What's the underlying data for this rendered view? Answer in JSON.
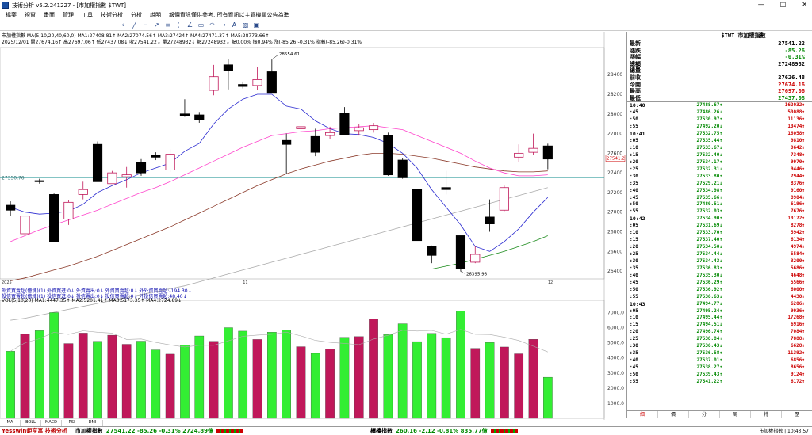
{
  "window": {
    "title": "技術分析 v5.2.241227 - [市加權指數 $TWT]",
    "minimize": "—",
    "maximize": "□",
    "close": "✕"
  },
  "menu": [
    "檔案",
    "視窗",
    "畫面",
    "管理",
    "工具",
    "技術分析",
    "分析",
    "說明",
    "報價資訊僅供參考, 所有資訊以主管機關公告為準"
  ],
  "chart_header": {
    "line1": "市加權指數  MA(5,10,20,40,60,0)  MA1:27408.81↑  MA2:27074.56↑  MA3:27424↑  MA4:27471.37↑  MA5:28773.66↑",
    "line2": "2025/12/01  開27674.16↑ 高27697.06↑ 低27437.08↓ 收27541.22↓ 量27248932↓ 額27248932↓ 幅0.00% 振0.94% 漲(-85.26)-0.31% 指數(-85.26)-0.31%"
  },
  "price_axis": [
    "28400",
    "28200",
    "28000",
    "27800",
    "27600",
    "27400",
    "27200",
    "27000",
    "26800",
    "26600",
    "26400"
  ],
  "price_annotations": {
    "high": "28554.61",
    "low": "26395.98",
    "ref": "27350.76",
    "cur": "27541.2"
  },
  "date_labels": {
    "d1": "2025",
    "d2": "11",
    "d3": "12"
  },
  "foreign_lines": [
    "外資買賣超(億塊)(1) 外資買進:0↓ 外資賣出:0↓ 外資買賣超:0↓ 外外資買賣超:-194.30↓",
    "投信買賣超(億塊)(1) 投信買進:0↓ 投信賣出:0↓ 投信買賣超:0↓ 外投信買賣超:48.40↓"
  ],
  "vol_header": "VOL(5,10,20)  MA1:4447.35↑  MA2:5201.41↑  MA3:5173.35↑  MA4:2724.89↓",
  "vol_axis": [
    "7000.0",
    "6000.0",
    "5000.0",
    "4000.0",
    "3000.0",
    "2000.0",
    "1000.0"
  ],
  "chart_data": {
    "type": "candlestick",
    "candles": [
      {
        "o": 27070,
        "h": 27110,
        "l": 26960,
        "c": 27020
      },
      {
        "o": 26780,
        "h": 27000,
        "l": 26530,
        "c": 26960
      },
      {
        "o": 27320,
        "h": 27340,
        "l": 27290,
        "c": 27310
      },
      {
        "o": 27180,
        "h": 27190,
        "l": 26700,
        "c": 26700
      },
      {
        "o": 26930,
        "h": 27120,
        "l": 26870,
        "c": 27100
      },
      {
        "o": 27180,
        "h": 27310,
        "l": 27130,
        "c": 27230
      },
      {
        "o": 27690,
        "h": 27720,
        "l": 27310,
        "c": 27310
      },
      {
        "o": 27290,
        "h": 27420,
        "l": 27300,
        "c": 27400
      },
      {
        "o": 27360,
        "h": 27460,
        "l": 27250,
        "c": 27380
      },
      {
        "o": 27510,
        "h": 27540,
        "l": 27370,
        "c": 27400
      },
      {
        "o": 27580,
        "h": 27610,
        "l": 27530,
        "c": 27560
      },
      {
        "o": 27430,
        "h": 27640,
        "l": 27410,
        "c": 27590
      },
      {
        "o": 28000,
        "h": 28150,
        "l": 27970,
        "c": 27980
      },
      {
        "o": 27990,
        "h": 28020,
        "l": 27910,
        "c": 27940
      },
      {
        "o": 28240,
        "h": 28500,
        "l": 28190,
        "c": 28380
      },
      {
        "o": 28500,
        "h": 28560,
        "l": 28250,
        "c": 28440
      },
      {
        "o": 28300,
        "h": 28330,
        "l": 28260,
        "c": 28280
      },
      {
        "o": 28290,
        "h": 28480,
        "l": 28240,
        "c": 28350
      },
      {
        "o": 28430,
        "h": 28554,
        "l": 28210,
        "c": 28210
      },
      {
        "o": 27730,
        "h": 27800,
        "l": 27390,
        "c": 27690
      },
      {
        "o": 27850,
        "h": 28000,
        "l": 27810,
        "c": 27870
      },
      {
        "o": 27770,
        "h": 27850,
        "l": 27570,
        "c": 27610
      },
      {
        "o": 27780,
        "h": 27870,
        "l": 27740,
        "c": 27810
      },
      {
        "o": 28010,
        "h": 28070,
        "l": 27780,
        "c": 27790
      },
      {
        "o": 27830,
        "h": 27900,
        "l": 27780,
        "c": 27860
      },
      {
        "o": 27840,
        "h": 27910,
        "l": 27810,
        "c": 27880
      },
      {
        "o": 27780,
        "h": 27810,
        "l": 27370,
        "c": 27380
      },
      {
        "o": 27530,
        "h": 27550,
        "l": 27340,
        "c": 27350
      },
      {
        "o": 27230,
        "h": 27240,
        "l": 26710,
        "c": 26710
      },
      {
        "o": 26650,
        "h": 26660,
        "l": 26480,
        "c": 26560
      },
      {
        "o": 27250,
        "h": 27420,
        "l": 27180,
        "c": 27230
      },
      {
        "o": 26760,
        "h": 26760,
        "l": 26396,
        "c": 26420
      },
      {
        "o": 26490,
        "h": 26650,
        "l": 26480,
        "c": 26570
      },
      {
        "o": 26950,
        "h": 27130,
        "l": 26800,
        "c": 26880
      },
      {
        "o": 27020,
        "h": 27270,
        "l": 27010,
        "c": 27250
      },
      {
        "o": 27560,
        "h": 27690,
        "l": 27510,
        "c": 27600
      },
      {
        "o": 27610,
        "h": 27800,
        "l": 27580,
        "c": 27650
      },
      {
        "o": 27674,
        "h": 27697,
        "l": 27437,
        "c": 27541
      }
    ],
    "ma5": [
      27050,
      27000,
      26980,
      26990,
      27010,
      27080,
      27200,
      27270,
      27330,
      27400,
      27450,
      27500,
      27620,
      27700,
      27900,
      28050,
      28150,
      28200,
      28200,
      28080,
      28050,
      27930,
      27850,
      27800,
      27790,
      27760,
      27700,
      27600,
      27450,
      27230,
      27050,
      26870,
      26650,
      26600,
      26700,
      26830,
      27000,
      27150
    ],
    "ma20": [
      26700,
      26760,
      26820,
      26870,
      26920,
      26970,
      27020,
      27080,
      27140,
      27200,
      27250,
      27310,
      27380,
      27450,
      27520,
      27590,
      27660,
      27720,
      27780,
      27800,
      27820,
      27830,
      27850,
      27860,
      27870,
      27880,
      27860,
      27840,
      27780,
      27720,
      27660,
      27600,
      27520,
      27450,
      27400,
      27370,
      27370,
      27380
    ],
    "ma60": [
      26300,
      26330,
      26370,
      26410,
      26450,
      26500,
      26550,
      26610,
      26670,
      26730,
      26790,
      26850,
      26920,
      26990,
      27060,
      27130,
      27200,
      27270,
      27330,
      27390,
      27440,
      27480,
      27520,
      27550,
      27580,
      27600,
      27600,
      27590,
      27570,
      27550,
      27520,
      27490,
      27460,
      27440,
      27420,
      27410,
      27410,
      27420
    ],
    "ma200": [
      25900,
      25920,
      25950,
      25980,
      26010,
      26040,
      26070,
      26100,
      26130,
      26160,
      26190,
      26220,
      26250,
      26290,
      26330,
      26370,
      26410,
      26450,
      26490,
      26530,
      26570,
      26610,
      26650,
      26690,
      26730,
      26770,
      26810,
      26850,
      26890,
      26930,
      26970,
      27010,
      27050,
      27090,
      27130,
      27170,
      27210,
      27250
    ],
    "ma_green": [
      null,
      null,
      null,
      null,
      null,
      null,
      null,
      null,
      null,
      null,
      null,
      null,
      null,
      null,
      null,
      null,
      null,
      null,
      null,
      null,
      null,
      null,
      null,
      null,
      null,
      null,
      null,
      null,
      null,
      26420,
      26450,
      26480,
      26520,
      26560,
      26600,
      26650,
      26700,
      26760
    ],
    "volume": [
      4440,
      5560,
      5800,
      7000,
      4950,
      5640,
      5100,
      5500,
      4900,
      5110,
      4530,
      4250,
      4830,
      5450,
      5100,
      6000,
      5770,
      5220,
      5700,
      5830,
      4740,
      4300,
      4570,
      5360,
      5410,
      6580,
      5540,
      6260,
      5080,
      5620,
      5340,
      7120,
      4630,
      5020,
      4720,
      4270,
      5230,
      2720
    ]
  },
  "quote_panel": {
    "title": "$TWT 市加權指數",
    "rows": [
      {
        "label": "最新",
        "value": "27541.22"
      },
      {
        "label": "漲跌",
        "value": "-85.26"
      },
      {
        "label": "漲幅",
        "value": "-0.31%"
      },
      {
        "label": "總額",
        "value": "27248932"
      },
      {
        "label": "總量",
        "value": ""
      },
      {
        "label": "前收",
        "value": "27626.48"
      },
      {
        "label": "今開",
        "value": "27674.16"
      },
      {
        "label": "最高",
        "value": "27697.06"
      },
      {
        "label": "最低",
        "value": "27437.08"
      }
    ],
    "ticks": [
      {
        "t": "10:40",
        "p": "27488.67↑",
        "v": "162032↑",
        "m": true
      },
      {
        "t": ":45",
        "p": "27486.26↓",
        "v": "50088↑"
      },
      {
        "t": ":50",
        "p": "27530.97↑",
        "v": "11136↑"
      },
      {
        "t": ":55",
        "p": "27492.20↓",
        "v": "10474↑"
      },
      {
        "t": "10:41",
        "p": "27532.75↑",
        "v": "16058↑",
        "m": true
      },
      {
        "t": ":05",
        "p": "27535.44↑",
        "v": "9810↑"
      },
      {
        "t": ":10",
        "p": "27533.67↓",
        "v": "9642↑"
      },
      {
        "t": ":15",
        "p": "27532.40↓",
        "v": "7348↑"
      },
      {
        "t": ":20",
        "p": "27534.17↑",
        "v": "9970↑"
      },
      {
        "t": ":25",
        "p": "27532.31↓",
        "v": "9446↑"
      },
      {
        "t": ":30",
        "p": "27533.80↑",
        "v": "7944↑"
      },
      {
        "t": ":35",
        "p": "27529.21↓",
        "v": "8376↑"
      },
      {
        "t": ":40",
        "p": "27534.98↑",
        "v": "9160↑"
      },
      {
        "t": ":45",
        "p": "27535.66↑",
        "v": "8904↑"
      },
      {
        "t": ":50",
        "p": "27480.51↓",
        "v": "6196↑"
      },
      {
        "t": ":55",
        "p": "27532.03↑",
        "v": "7676↑"
      },
      {
        "t": "10:42",
        "p": "27534.90↑",
        "v": "10172↑",
        "m": true
      },
      {
        "t": ":05",
        "p": "27531.69↓",
        "v": "8278↑"
      },
      {
        "t": ":10",
        "p": "27533.70↑",
        "v": "5942↑"
      },
      {
        "t": ":15",
        "p": "27537.40↑",
        "v": "6134↑"
      },
      {
        "t": ":20",
        "p": "27534.50↓",
        "v": "4974↑"
      },
      {
        "t": ":25",
        "p": "27534.44↓",
        "v": "5584↑"
      },
      {
        "t": ":30",
        "p": "27534.43↓",
        "v": "3200↑"
      },
      {
        "t": ":35",
        "p": "27536.83↑",
        "v": "5686↑"
      },
      {
        "t": ":40",
        "p": "27535.30↓",
        "v": "4648↑"
      },
      {
        "t": ":45",
        "p": "27536.29↑",
        "v": "5566↑"
      },
      {
        "t": ":50",
        "p": "27536.92↑",
        "v": "6000↑"
      },
      {
        "t": ":55",
        "p": "27536.63↓",
        "v": "4430↑"
      },
      {
        "t": "10:43",
        "p": "27494.77↓",
        "v": "6206↑",
        "m": true
      },
      {
        "t": ":05",
        "p": "27495.24↑",
        "v": "9936↑"
      },
      {
        "t": ":10",
        "p": "27495.44↑",
        "v": "17268↑"
      },
      {
        "t": ":15",
        "p": "27494.51↓",
        "v": "6916↑"
      },
      {
        "t": ":20",
        "p": "27496.74↑",
        "v": "7084↑"
      },
      {
        "t": ":25",
        "p": "27538.84↑",
        "v": "7888↑"
      },
      {
        "t": ":30",
        "p": "27536.43↓",
        "v": "6628↑"
      },
      {
        "t": ":35",
        "p": "27536.58↑",
        "v": "11392↑"
      },
      {
        "t": ":40",
        "p": "27537.01↑",
        "v": "6856↑"
      },
      {
        "t": ":45",
        "p": "27538.27↑",
        "v": "8656↑"
      },
      {
        "t": ":50",
        "p": "27539.43↑",
        "v": "9124↑"
      },
      {
        "t": ":55",
        "p": "27541.22↑",
        "v": "6172↑"
      }
    ],
    "tabs": [
      "細",
      "價",
      "分",
      "周",
      "特",
      "歷"
    ]
  },
  "indicator_tabs": [
    "MA",
    "BOLL",
    "MACD",
    "RSI",
    "DMI"
  ],
  "bottom": {
    "brand": "Yesswin鉅亨富 技術分析",
    "idx1_name": "市加權指數",
    "idx1_vals": "27541.22 -85.26 -0.31% 2724.89億",
    "idx2_name": "櫃檯指數",
    "idx2_vals": "260.16 -2.12 -0.81% 835.77億",
    "status": "市加權指數 | 10:43:57"
  },
  "colors": {
    "up": "#c0185a",
    "down": "#000000",
    "vol_up": "#c0185a",
    "vol_down": "#33ee33",
    "ma5": "#2a2ad0",
    "ma20": "#ff44cc",
    "ma60": "#8b3a2a",
    "ma200": "#aaaaaa",
    "ma_green": "#1a8a1a"
  }
}
